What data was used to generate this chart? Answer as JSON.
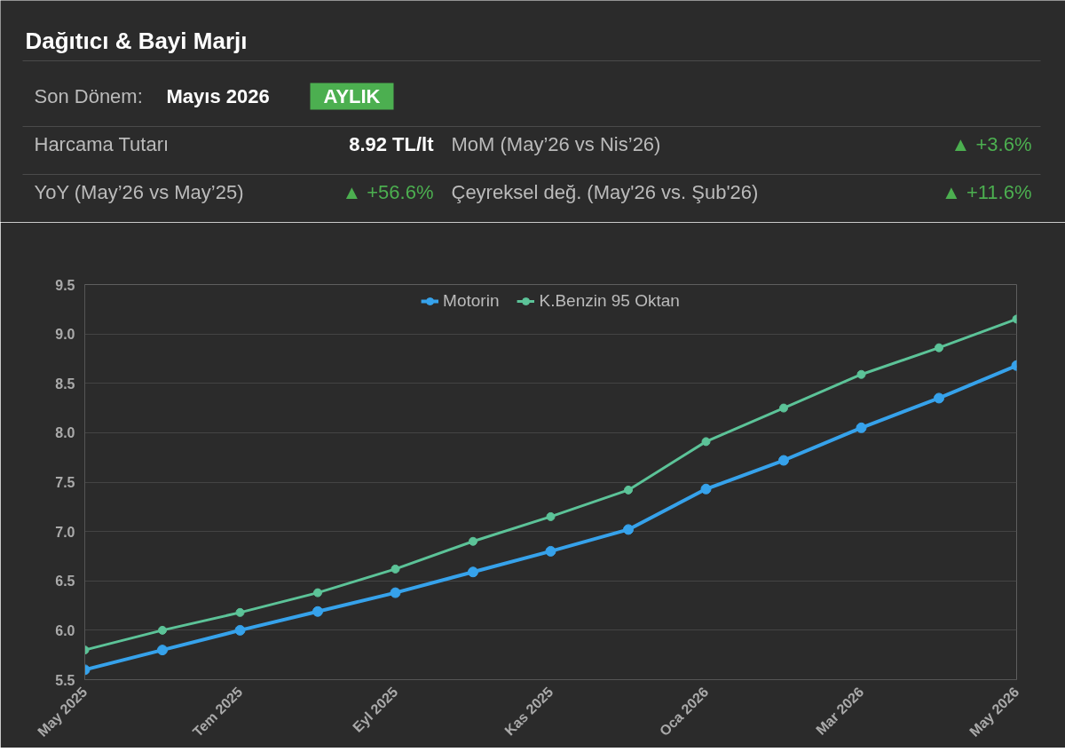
{
  "chart_data": {
    "type": "line",
    "title": "Dağıtıcı & Bayi Marjı",
    "annotations": [
      "Son Dönem:",
      "Mayıs 2026",
      "AYLIK",
      "Harcama Tutarı",
      "8.92 TL/lt",
      "MoM (May’26 vs Nis’26)",
      "▲ +3.6%",
      "YoY (May’26 vs May’25)",
      "▲ +56.6%",
      "Çeyreksel değ. (May'26 vs. Şub'26)",
      "▲ +11.6%"
    ],
    "categories": [
      "May 2025",
      null,
      "Tem 2025",
      null,
      "Eyl 2025",
      null,
      "Kas 2025",
      null,
      "Oca 2026",
      null,
      "Mar 2026",
      null,
      "May 2026"
    ],
    "series": [
      {
        "name": "Motorin",
        "color": "#36a2eb",
        "values": [
          5.6,
          5.8,
          6.0,
          6.19,
          6.38,
          6.59,
          6.8,
          7.02,
          7.43,
          7.72,
          8.05,
          8.35,
          8.68
        ]
      },
      {
        "name": "K.Benzin 95 Oktan",
        "color": "#5cc398",
        "values": [
          5.8,
          6.0,
          6.18,
          6.38,
          6.62,
          6.9,
          7.15,
          7.42,
          7.91,
          8.25,
          8.59,
          8.86,
          9.15
        ]
      }
    ],
    "ylim": [
      5.5,
      9.5
    ],
    "yticks": [
      5.5,
      {
        "value": 6,
        "label": "6.0"
      },
      6.5,
      {
        "value": 7,
        "label": "7.0"
      },
      7.5,
      {
        "value": 8,
        "label": "8.0"
      },
      8.5,
      {
        "value": 9,
        "label": "9.0"
      },
      9.5
    ],
    "grid": "y",
    "legend": "top",
    "marker": "circle",
    "line_style": "solid"
  }
}
